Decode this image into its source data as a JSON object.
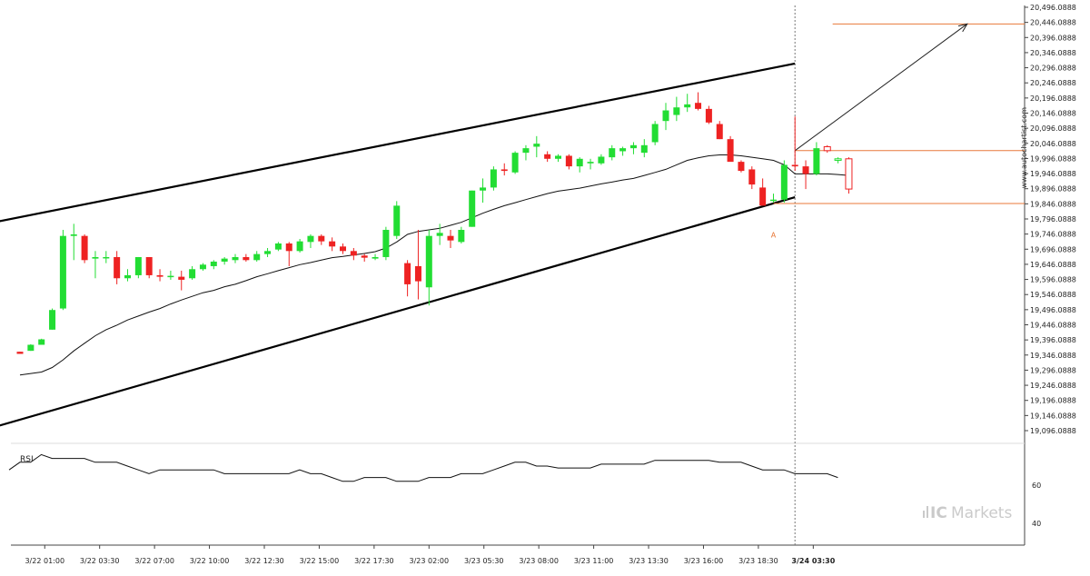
{
  "chart_data": {
    "type": "candlestick",
    "watermark_vertical": "www.autochartist.com",
    "brand": {
      "prefix": "IC",
      "suffix": "Markets"
    },
    "y_ticks": [
      "20,496.0888",
      "20,446.0888",
      "20,396.0888",
      "20,346.0888",
      "20,296.0888",
      "20,246.0888",
      "20,196.0888",
      "20,146.0888",
      "20,096.0888",
      "20,046.0888",
      "19,996.0888",
      "19,946.0888",
      "19,896.0888",
      "19,846.0888",
      "19,796.0888",
      "19,746.0888",
      "19,696.0888",
      "19,646.0888",
      "19,596.0888",
      "19,546.0888",
      "19,496.0888",
      "19,446.0888",
      "19,396.0888",
      "19,346.0888",
      "19,296.0888",
      "19,246.0888",
      "19,196.0888",
      "19,146.0888",
      "19,096.0888"
    ],
    "x_ticks": [
      "3/22 01:00",
      "3/22 03:30",
      "3/22 07:00",
      "3/22 10:00",
      "3/22 12:30",
      "3/22 15:00",
      "3/22 17:30",
      "3/23 02:00",
      "3/23 05:30",
      "3/23 08:00",
      "3/23 11:00",
      "3/23 13:30",
      "3/23 16:00",
      "3/23 18:30",
      "3/24 03:30"
    ],
    "candles": [
      [
        19357,
        19357,
        19350,
        19350
      ],
      [
        19360,
        19382,
        19360,
        19380
      ],
      [
        19380,
        19400,
        19380,
        19398
      ],
      [
        19430,
        19500,
        19430,
        19495
      ],
      [
        19500,
        19760,
        19495,
        19740
      ],
      [
        19740,
        19780,
        19660,
        19745
      ],
      [
        19740,
        19745,
        19650,
        19660
      ],
      [
        19665,
        19690,
        19600,
        19670
      ],
      [
        19670,
        19690,
        19650,
        19670
      ],
      [
        19670,
        19690,
        19580,
        19600
      ],
      [
        19600,
        19630,
        19590,
        19610
      ],
      [
        19610,
        19670,
        19600,
        19670
      ],
      [
        19670,
        19670,
        19600,
        19610
      ],
      [
        19610,
        19630,
        19590,
        19605
      ],
      [
        19605,
        19625,
        19595,
        19608
      ],
      [
        19605,
        19625,
        19560,
        19595
      ],
      [
        19600,
        19640,
        19595,
        19630
      ],
      [
        19630,
        19650,
        19625,
        19645
      ],
      [
        19640,
        19660,
        19630,
        19655
      ],
      [
        19655,
        19670,
        19645,
        19665
      ],
      [
        19660,
        19680,
        19650,
        19670
      ],
      [
        19670,
        19680,
        19655,
        19660
      ],
      [
        19660,
        19690,
        19655,
        19680
      ],
      [
        19680,
        19700,
        19670,
        19690
      ],
      [
        19695,
        19720,
        19690,
        19715
      ],
      [
        19715,
        19720,
        19640,
        19690
      ],
      [
        19690,
        19730,
        19685,
        19722
      ],
      [
        19720,
        19745,
        19700,
        19740
      ],
      [
        19740,
        19745,
        19710,
        19722
      ],
      [
        19722,
        19735,
        19690,
        19705
      ],
      [
        19705,
        19715,
        19680,
        19690
      ],
      [
        19690,
        19700,
        19660,
        19675
      ],
      [
        19675,
        19680,
        19655,
        19668
      ],
      [
        19665,
        19680,
        19660,
        19670
      ],
      [
        19670,
        19770,
        19660,
        19760
      ],
      [
        19740,
        19855,
        19730,
        19840
      ],
      [
        19650,
        19660,
        19540,
        19580
      ],
      [
        19640,
        19760,
        19530,
        19590
      ],
      [
        19570,
        19760,
        19510,
        19740
      ],
      [
        19740,
        19780,
        19710,
        19750
      ],
      [
        19740,
        19760,
        19700,
        19725
      ],
      [
        19720,
        19770,
        19715,
        19760
      ],
      [
        19770,
        19890,
        19770,
        19890
      ],
      [
        19890,
        19930,
        19850,
        19900
      ],
      [
        19900,
        19970,
        19890,
        19960
      ],
      [
        19960,
        19980,
        19940,
        19955
      ],
      [
        19950,
        20020,
        19945,
        20015
      ],
      [
        20015,
        20040,
        19990,
        20030
      ],
      [
        20035,
        20070,
        20000,
        20045
      ],
      [
        20010,
        20020,
        19985,
        19995
      ],
      [
        19995,
        20010,
        19985,
        20005
      ],
      [
        20005,
        20010,
        19960,
        19970
      ],
      [
        19970,
        20000,
        19950,
        19995
      ],
      [
        19980,
        19995,
        19960,
        19985
      ],
      [
        19980,
        20010,
        19975,
        20002
      ],
      [
        20000,
        20040,
        19990,
        20030
      ],
      [
        20020,
        20035,
        20005,
        20030
      ],
      [
        20030,
        20050,
        20010,
        20040
      ],
      [
        20015,
        20060,
        20000,
        20040
      ],
      [
        20050,
        20120,
        20040,
        20110
      ],
      [
        20120,
        20180,
        20090,
        20155
      ],
      [
        20140,
        20200,
        20120,
        20165
      ],
      [
        20165,
        20210,
        20150,
        20175
      ],
      [
        20180,
        20215,
        20155,
        20160
      ],
      [
        20160,
        20170,
        20110,
        20115
      ],
      [
        20110,
        20120,
        20060,
        20060
      ],
      [
        20060,
        20070,
        19990,
        19985
      ],
      [
        19985,
        19990,
        19950,
        19955
      ],
      [
        19960,
        19970,
        19895,
        19910
      ],
      [
        19900,
        19930,
        19840,
        19840
      ],
      [
        19860,
        19880,
        19850,
        19860
      ],
      [
        19860,
        19990,
        19850,
        19975
      ],
      [
        19975,
        20135,
        19955,
        19970
      ],
      [
        19970,
        19990,
        19895,
        19945
      ],
      [
        19945,
        20050,
        19940,
        20030
      ],
      [
        20035,
        20040,
        20015,
        20022
      ],
      [
        19990,
        20000,
        19980,
        19995
      ],
      [
        19995,
        20000,
        19880,
        19895
      ]
    ],
    "ma": [
      19280,
      19285,
      19290,
      19305,
      19330,
      19360,
      19385,
      19410,
      19430,
      19445,
      19462,
      19475,
      19488,
      19500,
      19515,
      19528,
      19540,
      19552,
      19560,
      19572,
      19580,
      19592,
      19605,
      19615,
      19625,
      19635,
      19645,
      19652,
      19660,
      19668,
      19672,
      19677,
      19682,
      19688,
      19700,
      19720,
      19745,
      19755,
      19760,
      19765,
      19775,
      19785,
      19800,
      19815,
      19828,
      19840,
      19850,
      19860,
      19870,
      19880,
      19888,
      19893,
      19898,
      19905,
      19912,
      19918,
      19925,
      19930,
      19940,
      19950,
      19960,
      19975,
      19990,
      19998,
      20005,
      20008,
      20008,
      20005,
      20000,
      19995,
      19990,
      19975,
      19945,
      19945,
      19945,
      19945,
      19943,
      19940
    ],
    "channel_upper": {
      "start": [
        -2,
        19788
      ],
      "end": [
        72,
        20310
      ]
    },
    "channel_lower": {
      "start": [
        -2,
        19112
      ],
      "end": [
        72,
        19868
      ]
    },
    "hlines": [
      {
        "y": 20441,
        "from_index": 75.5
      },
      {
        "y": 20022,
        "from_index": 72
      },
      {
        "y": 19847,
        "from_index": 70
      }
    ],
    "arrow": {
      "from": [
        72,
        20022
      ],
      "to": [
        88,
        20441
      ]
    },
    "point_label": {
      "text": "A",
      "index": 70,
      "y": 19810
    },
    "divider_index": 72,
    "rsi": {
      "label": "RSI",
      "ticks": [
        "60",
        "40"
      ],
      "levels": [
        60,
        40
      ],
      "values": [
        68,
        72,
        72,
        76,
        74,
        74,
        74,
        74,
        72,
        72,
        72,
        70,
        68,
        66,
        68,
        68,
        68,
        68,
        68,
        68,
        66,
        66,
        66,
        66,
        66,
        66,
        66,
        68,
        66,
        66,
        64,
        62,
        62,
        64,
        64,
        64,
        62,
        62,
        62,
        64,
        64,
        64,
        66,
        66,
        66,
        68,
        70,
        72,
        72,
        70,
        70,
        69,
        69,
        69,
        69,
        71,
        71,
        71,
        71,
        71,
        73,
        73,
        73,
        73,
        73,
        73,
        72,
        72,
        72,
        70,
        68,
        68,
        68,
        66,
        66,
        66,
        66,
        64
      ]
    }
  }
}
